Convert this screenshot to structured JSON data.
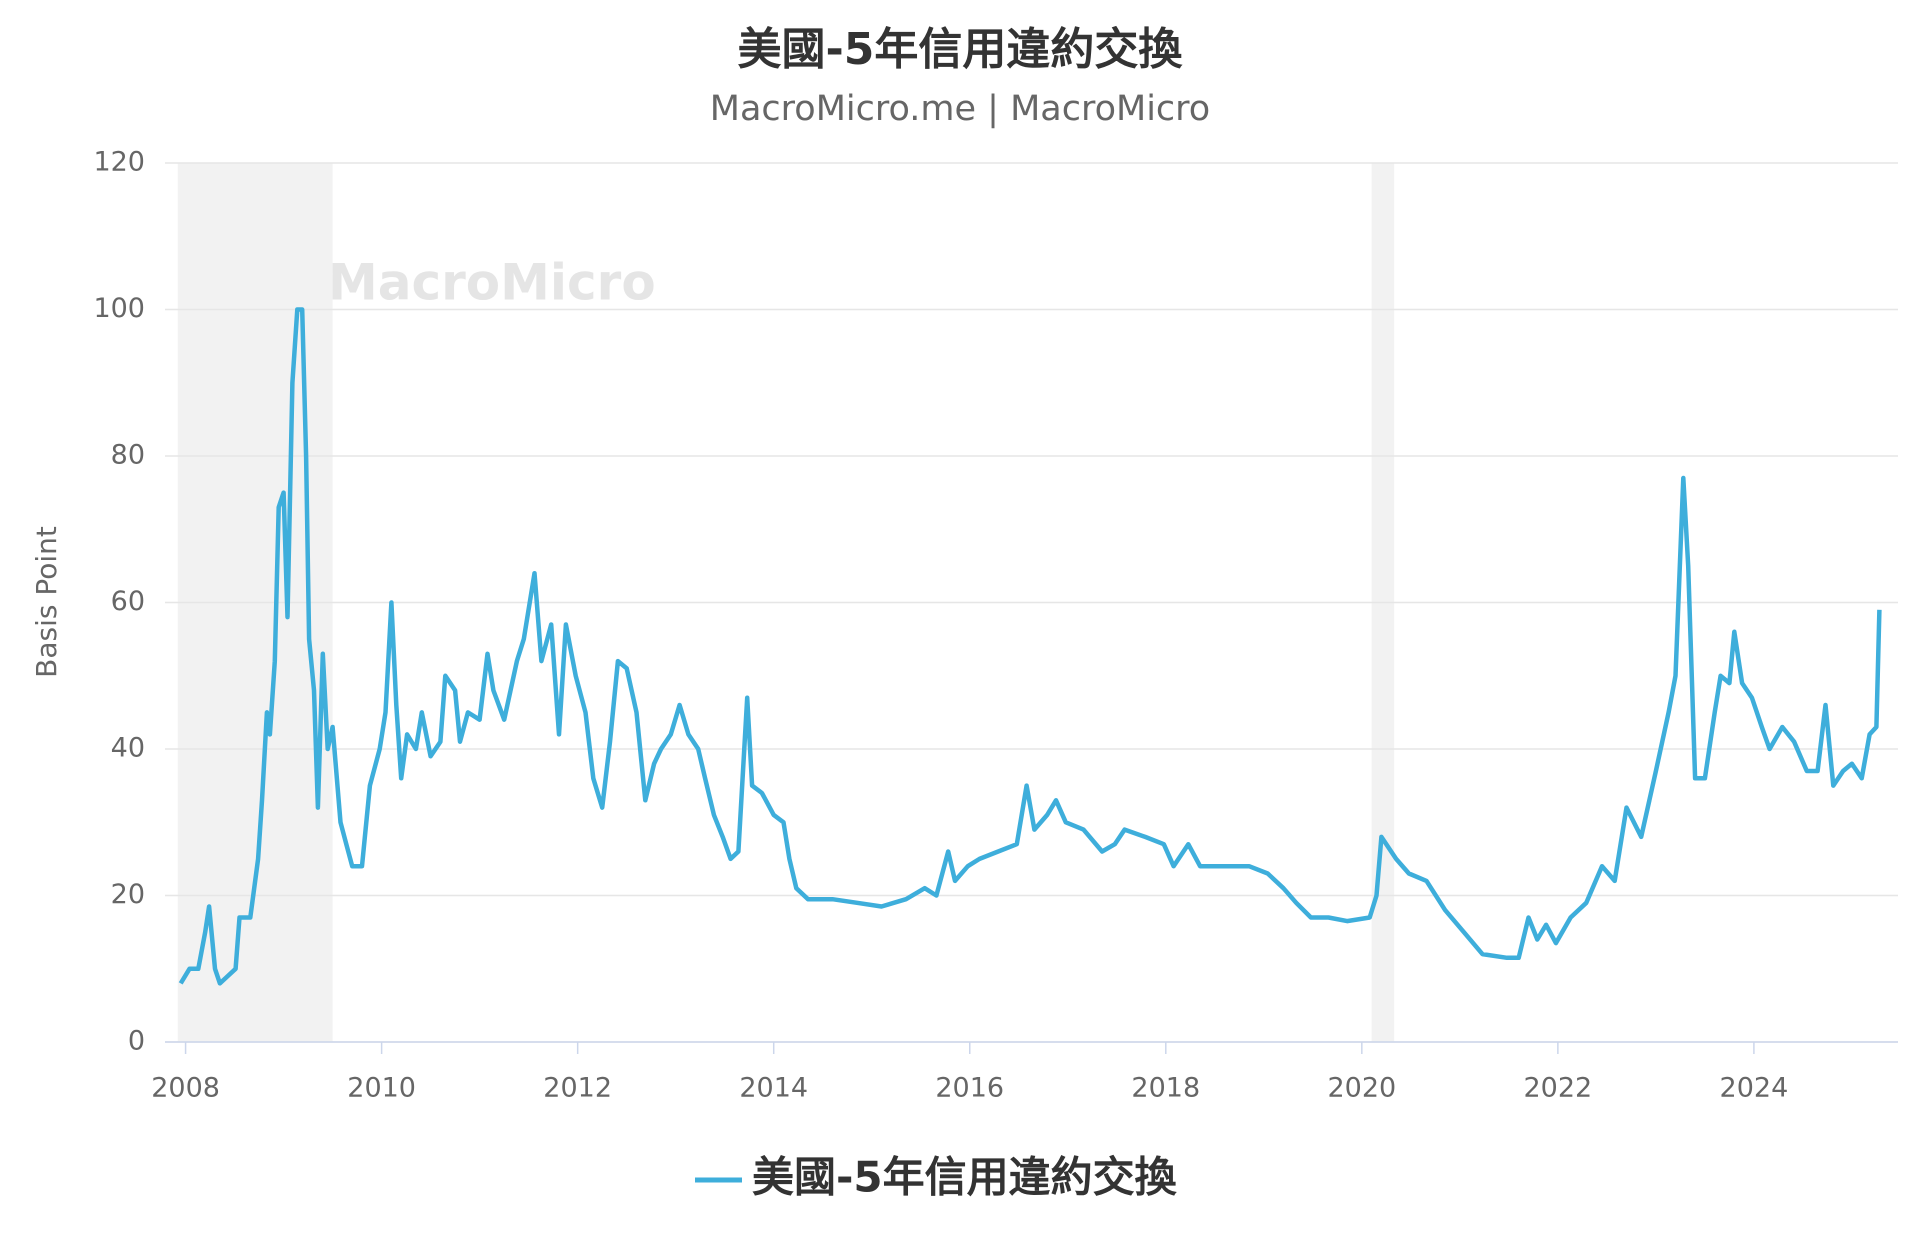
{
  "chart_data": {
    "type": "line",
    "title": "美國-5年信用違約交換",
    "subtitle": "MacroMicro.me | MacroMicro",
    "watermark": "MacroMicro",
    "y_label": "Basis Point",
    "xlim": [
      2007.79,
      2025.47
    ],
    "xticks": [
      2008,
      2010,
      2012,
      2014,
      2016,
      2018,
      2020,
      2022,
      2024
    ],
    "ylim": [
      0,
      120
    ],
    "yticks": [
      0,
      20,
      40,
      60,
      80,
      100,
      120
    ],
    "grid": true,
    "legend": "bottom",
    "shaded_ranges": [
      [
        2007.92,
        2009.5
      ],
      [
        2020.1,
        2020.33
      ]
    ],
    "x": [
      2007.95,
      2008.04,
      2008.13,
      2008.2,
      2008.24,
      2008.3,
      2008.35,
      2008.43,
      2008.51,
      2008.55,
      2008.66,
      2008.74,
      2008.78,
      2008.83,
      2008.86,
      2008.91,
      2008.95,
      2009.0,
      2009.04,
      2009.09,
      2009.14,
      2009.19,
      2009.23,
      2009.26,
      2009.31,
      2009.35,
      2009.4,
      2009.45,
      2009.5,
      2009.58,
      2009.64,
      2009.7,
      2009.8,
      2009.88,
      2009.98,
      2010.04,
      2010.1,
      2010.15,
      2010.2,
      2010.26,
      2010.35,
      2010.41,
      2010.5,
      2010.6,
      2010.65,
      2010.75,
      2010.8,
      2010.88,
      2011.0,
      2011.08,
      2011.14,
      2011.25,
      2011.38,
      2011.45,
      2011.56,
      2011.63,
      2011.73,
      2011.81,
      2011.88,
      2011.98,
      2012.08,
      2012.16,
      2012.25,
      2012.33,
      2012.41,
      2012.5,
      2012.6,
      2012.69,
      2012.78,
      2012.85,
      2012.95,
      2013.04,
      2013.13,
      2013.23,
      2013.3,
      2013.39,
      2013.48,
      2013.56,
      2013.64,
      2013.73,
      2013.78,
      2013.88,
      2014.0,
      2014.1,
      2014.16,
      2014.23,
      2014.35,
      2014.6,
      2014.85,
      2015.1,
      2015.35,
      2015.54,
      2015.66,
      2015.78,
      2015.85,
      2015.98,
      2016.1,
      2016.29,
      2016.48,
      2016.58,
      2016.66,
      2016.79,
      2016.88,
      2016.98,
      2017.16,
      2017.35,
      2017.48,
      2017.58,
      2017.79,
      2017.98,
      2018.08,
      2018.23,
      2018.35,
      2018.6,
      2018.85,
      2019.04,
      2019.2,
      2019.33,
      2019.48,
      2019.66,
      2019.85,
      2020.08,
      2020.15,
      2020.2,
      2020.35,
      2020.48,
      2020.66,
      2020.85,
      2021.04,
      2021.23,
      2021.48,
      2021.6,
      2021.7,
      2021.79,
      2021.88,
      2021.98,
      2022.13,
      2022.29,
      2022.45,
      2022.58,
      2022.7,
      2022.85,
      2023.0,
      2023.13,
      2023.2,
      2023.28,
      2023.33,
      2023.4,
      2023.5,
      2023.6,
      2023.66,
      2023.75,
      2023.8,
      2023.88,
      2023.98,
      2024.08,
      2024.16,
      2024.29,
      2024.41,
      2024.54,
      2024.65,
      2024.73,
      2024.81,
      2024.91,
      2025.0,
      2025.1,
      2025.18,
      2025.25,
      2025.28
    ],
    "series": [
      {
        "name": "美國-5年信用違約交換",
        "color": "#3eaedb",
        "values": [
          8,
          10,
          10,
          15,
          18.5,
          10,
          8,
          9,
          10,
          17,
          17,
          25,
          33,
          45,
          42,
          52,
          73,
          75,
          58,
          90,
          100,
          100,
          80,
          55,
          48,
          32,
          53,
          40,
          43,
          30,
          27,
          24,
          24,
          35,
          40,
          45,
          60,
          46,
          36,
          42,
          40,
          45,
          39,
          41,
          50,
          48,
          41,
          45,
          44,
          53,
          48,
          44,
          52,
          55,
          64,
          52,
          57,
          42,
          57,
          50,
          45,
          36,
          32,
          41,
          52,
          51,
          45,
          33,
          38,
          40,
          42,
          46,
          42,
          40,
          36,
          31,
          28,
          25,
          26,
          47,
          35,
          34,
          31,
          30,
          25,
          21,
          19.5,
          19.5,
          19,
          18.5,
          19.5,
          21,
          20,
          26,
          22,
          24,
          25,
          26,
          27,
          35,
          29,
          31,
          33,
          30,
          29,
          26,
          27,
          29,
          28,
          27,
          24,
          27,
          24,
          24,
          24,
          23,
          21,
          19,
          17,
          17,
          16.5,
          17,
          20,
          28,
          25,
          23,
          22,
          18,
          15,
          12,
          11.5,
          11.5,
          17,
          14,
          16,
          13.5,
          17,
          19,
          24,
          22,
          32,
          28,
          37,
          45,
          50,
          77,
          65,
          36,
          36,
          45,
          50,
          49,
          56,
          49,
          47,
          43,
          40,
          43,
          41,
          37,
          37,
          46,
          35,
          37,
          38,
          36,
          42,
          43,
          59
        ]
      }
    ]
  }
}
